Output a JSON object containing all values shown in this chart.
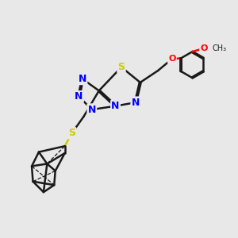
{
  "bg_color": "#e8e8e8",
  "bond_color": "#1a1a1a",
  "bond_width": 1.8,
  "atom_colors": {
    "N": "#0000ff",
    "S": "#cccc00",
    "O": "#ff0000",
    "C": "#1a1a1a",
    "H": "#1a1a1a"
  },
  "font_size_atom": 9,
  "title": ""
}
